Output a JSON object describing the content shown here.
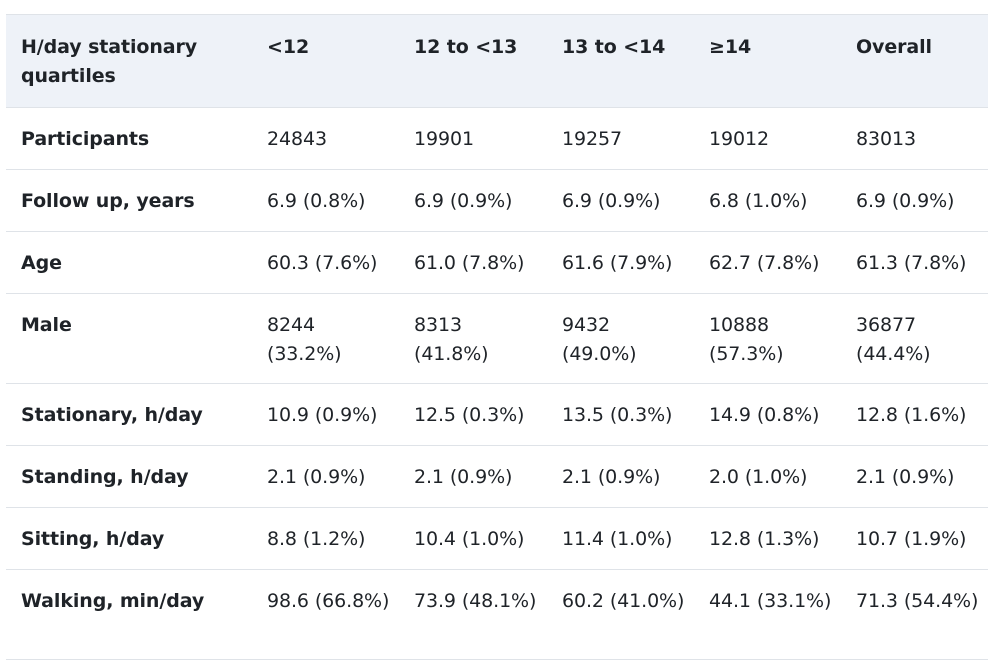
{
  "table": {
    "headers": [
      "H/day stationary quartiles",
      "<12",
      "12 to <13",
      "13 to <14",
      "≥14",
      "Overall"
    ],
    "rows": [
      {
        "label": "Participants",
        "cells": [
          "24843",
          "19901",
          "19257",
          "19012",
          "83013"
        ]
      },
      {
        "label": "Follow up, years",
        "cells": [
          "6.9 (0.8%)",
          "6.9 (0.9%)",
          "6.9 (0.9%)",
          "6.8 (1.0%)",
          "6.9 (0.9%)"
        ]
      },
      {
        "label": "Age",
        "cells": [
          "60.3 (7.6%)",
          "61.0 (7.8%)",
          "61.6 (7.9%)",
          "62.7 (7.8%)",
          "61.3 (7.8%)"
        ]
      },
      {
        "label": "Male",
        "cells": [
          "8244 (33.2%)",
          "8313 (41.8%)",
          "9432 (49.0%)",
          "10888 (57.3%)",
          "36877 (44.4%)"
        ]
      },
      {
        "label": "Stationary, h/day",
        "cells": [
          "10.9 (0.9%)",
          "12.5 (0.3%)",
          "13.5 (0.3%)",
          "14.9 (0.8%)",
          "12.8 (1.6%)"
        ]
      },
      {
        "label": "Standing, h/day",
        "cells": [
          "2.1 (0.9%)",
          "2.1 (0.9%)",
          "2.1 (0.9%)",
          "2.0 (1.0%)",
          "2.1 (0.9%)"
        ]
      },
      {
        "label": "Sitting, h/day",
        "cells": [
          "8.8 (1.2%)",
          "10.4 (1.0%)",
          "11.4 (1.0%)",
          "12.8 (1.3%)",
          "10.7 (1.9%)"
        ]
      },
      {
        "label": "Walking, min/day",
        "cells": [
          "98.6 (66.8%)",
          "73.9 (48.1%)",
          "60.2 (41.0%)",
          "44.1 (33.1%)",
          "71.3 (54.4%)"
        ]
      }
    ]
  },
  "colors": {
    "header_background": "#eef2f8",
    "rule": "#dfe3e8",
    "text": "#1f2328"
  }
}
